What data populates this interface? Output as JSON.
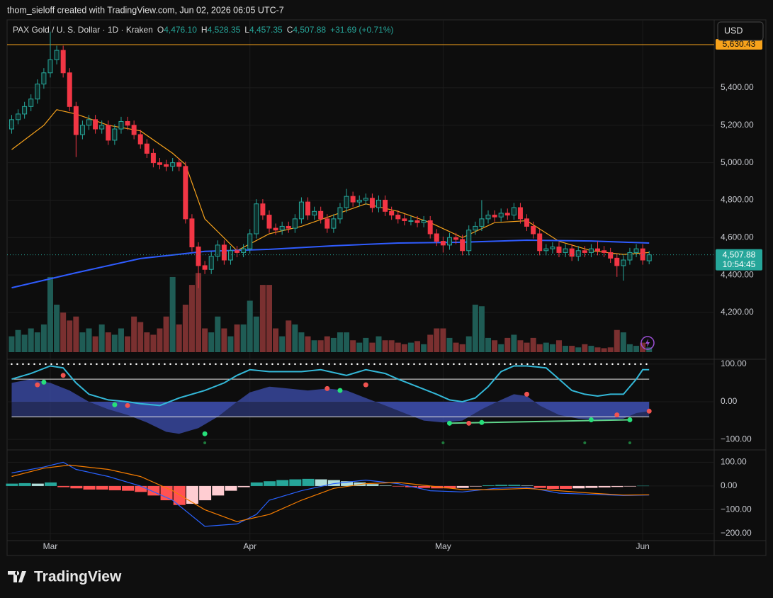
{
  "header": "thom_sieloff created with TradingView.com, Jun 02, 2026 06:05 UTC-7",
  "currency": "USD",
  "logo": "TradingView",
  "chart_data": [
    {
      "type": "candlestick",
      "title": "PAX Gold / U. S. Dollar · 1D · Kraken",
      "ohlc": [
        {
          "label": "O",
          "value": "4,476.10"
        },
        {
          "label": "H",
          "value": "4,528.35"
        },
        {
          "label": "L",
          "value": "4,457.35"
        },
        {
          "label": "C",
          "value": "4,507.88"
        }
      ],
      "change": "+31.69 (+0.71%)",
      "xlim": [
        -0.71,
        109.1
      ],
      "xticks": [
        {
          "value": 6,
          "label": "Mar"
        },
        {
          "value": 37,
          "label": "Apr"
        },
        {
          "value": 67,
          "label": "May"
        },
        {
          "value": 98,
          "label": "Jun"
        }
      ],
      "ylim": [
        3988,
        5763
      ],
      "yticks": [
        {
          "value": 4200,
          "label": "4,200.00"
        },
        {
          "value": 4400,
          "label": "4,400.00"
        },
        {
          "value": 4600,
          "label": "4,600.00"
        },
        {
          "value": 4800,
          "label": "4,800.00"
        },
        {
          "value": 5000,
          "label": "5,000.00"
        },
        {
          "value": 5200,
          "label": "5,200.00"
        },
        {
          "value": 5400,
          "label": "5,400.00"
        }
      ],
      "up_color": "#26a69a",
      "down_color": "#f23645",
      "open": [
        5180,
        5230,
        5260,
        5300,
        5340,
        5420,
        5480,
        5550,
        5600,
        5480,
        5300,
        5150,
        5200,
        5230,
        5180,
        5200,
        5120,
        5180,
        5220,
        5200,
        5150,
        5100,
        5050,
        5000,
        4990,
        4980,
        5000,
        4980,
        4700,
        4550,
        4450,
        4430,
        4500,
        4560,
        4480,
        4530,
        4520,
        4540,
        4620,
        4780,
        4720,
        4650,
        4640,
        4660,
        4650,
        4700,
        4790,
        4720,
        4740,
        4700,
        4650,
        4700,
        4760,
        4820,
        4790,
        4800,
        4810,
        4760,
        4800,
        4740,
        4720,
        4700,
        4690,
        4690,
        4680,
        4690,
        4620,
        4580,
        4560,
        4600,
        4590,
        4530,
        4640,
        4660,
        4700,
        4720,
        4710,
        4730,
        4720,
        4760,
        4700,
        4660,
        4620,
        4530,
        4540,
        4550,
        4520,
        4540,
        4500,
        4530,
        4520,
        4540,
        4530,
        4520,
        4490,
        4450,
        4480,
        4520,
        4540,
        4476.1
      ],
      "high": [
        5255,
        5285,
        5325,
        5365,
        5445,
        5505,
        5700,
        5625,
        5625,
        5505,
        5325,
        5225,
        5255,
        5255,
        5225,
        5225,
        5205,
        5245,
        5245,
        5225,
        5175,
        5125,
        5075,
        5025,
        5015,
        5025,
        5025,
        5005,
        4725,
        4575,
        4475,
        4525,
        4585,
        4585,
        4555,
        4555,
        4565,
        4645,
        4805,
        4805,
        4745,
        4675,
        4685,
        4685,
        4725,
        4815,
        4815,
        4765,
        4765,
        4725,
        4725,
        4785,
        4860,
        4845,
        4825,
        4835,
        4835,
        4825,
        4825,
        4765,
        4745,
        4725,
        4715,
        4715,
        4715,
        4715,
        4645,
        4605,
        4625,
        4625,
        4615,
        4665,
        4685,
        4800,
        4745,
        4745,
        4755,
        4755,
        4785,
        4785,
        4725,
        4685,
        4645,
        4565,
        4575,
        4575,
        4565,
        4565,
        4555,
        4555,
        4565,
        4580,
        4555,
        4545,
        4515,
        4505,
        4545,
        4565,
        4565,
        4528.35
      ],
      "low": [
        5155,
        5205,
        5235,
        5275,
        5315,
        5395,
        5455,
        5525,
        5455,
        5275,
        5030,
        5125,
        5175,
        5155,
        5155,
        5095,
        5095,
        5155,
        5175,
        5125,
        5075,
        5025,
        4975,
        4965,
        4955,
        4955,
        4955,
        4675,
        4525,
        4330,
        4405,
        4405,
        4475,
        4455,
        4455,
        4495,
        4495,
        4515,
        4595,
        4695,
        4625,
        4615,
        4615,
        4625,
        4625,
        4675,
        4695,
        4695,
        4675,
        4625,
        4625,
        4675,
        4735,
        4765,
        4765,
        4775,
        4735,
        4735,
        4715,
        4695,
        4675,
        4665,
        4665,
        4655,
        4655,
        4595,
        4555,
        4520,
        4535,
        4565,
        4505,
        4505,
        4615,
        4635,
        4675,
        4685,
        4685,
        4695,
        4695,
        4675,
        4635,
        4595,
        4505,
        4505,
        4515,
        4495,
        4495,
        4475,
        4475,
        4495,
        4495,
        4505,
        4495,
        4465,
        4390,
        4370,
        4455,
        4495,
        4455,
        4457.35
      ],
      "close": [
        5230,
        5260,
        5300,
        5340,
        5420,
        5480,
        5550,
        5600,
        5480,
        5300,
        5150,
        5200,
        5230,
        5180,
        5200,
        5120,
        5180,
        5220,
        5200,
        5150,
        5100,
        5050,
        5000,
        4990,
        4980,
        5000,
        4980,
        4700,
        4550,
        4450,
        4430,
        4500,
        4560,
        4480,
        4530,
        4520,
        4540,
        4620,
        4780,
        4720,
        4650,
        4640,
        4660,
        4650,
        4700,
        4790,
        4720,
        4740,
        4700,
        4650,
        4700,
        4760,
        4820,
        4790,
        4800,
        4810,
        4760,
        4800,
        4740,
        4720,
        4700,
        4690,
        4690,
        4680,
        4690,
        4620,
        4580,
        4560,
        4600,
        4590,
        4530,
        4640,
        4660,
        4700,
        4720,
        4710,
        4730,
        4720,
        4760,
        4700,
        4660,
        4620,
        4530,
        4540,
        4550,
        4520,
        4540,
        4500,
        4530,
        4520,
        4540,
        4530,
        4520,
        4490,
        4450,
        4480,
        4520,
        4540,
        4480,
        4507.88
      ],
      "volume_lim": [
        0,
        420
      ],
      "volume": [
        20,
        28,
        22,
        30,
        25,
        35,
        95,
        60,
        50,
        40,
        45,
        25,
        30,
        20,
        35,
        25,
        22,
        30,
        20,
        45,
        38,
        25,
        22,
        30,
        45,
        95,
        35,
        60,
        85,
        100,
        30,
        25,
        45,
        30,
        20,
        35,
        35,
        65,
        45,
        85,
        85,
        30,
        20,
        40,
        35,
        25,
        20,
        15,
        15,
        20,
        18,
        25,
        25,
        15,
        12,
        18,
        12,
        20,
        15,
        15,
        12,
        10,
        12,
        14,
        10,
        22,
        30,
        30,
        18,
        12,
        10,
        20,
        60,
        58,
        18,
        15,
        10,
        18,
        22,
        15,
        12,
        18,
        10,
        12,
        10,
        15,
        8,
        8,
        6,
        10,
        8,
        6,
        5,
        6,
        28,
        25,
        10,
        8,
        12,
        6
      ],
      "volume_up_color": "#1f5c55",
      "volume_down_color": "#7a3030",
      "moving_averages": [
        {
          "color": "#f7a21b",
          "x": [
            0,
            5,
            7,
            10,
            15,
            20,
            25,
            27,
            30,
            35,
            40,
            45,
            50,
            55,
            60,
            65,
            70,
            75,
            80,
            85,
            90,
            95,
            99
          ],
          "values": [
            5070,
            5200,
            5283,
            5260,
            5200,
            5170,
            5050,
            4990,
            4700,
            4530,
            4620,
            4660,
            4720,
            4780,
            4740,
            4680,
            4600,
            4680,
            4690,
            4580,
            4530,
            4510,
            4520
          ]
        },
        {
          "color": "#2f5cff",
          "x": [
            0,
            10,
            20,
            30,
            40,
            50,
            60,
            70,
            80,
            90,
            99
          ],
          "values": [
            4332,
            4412,
            4488,
            4526,
            4537,
            4556,
            4571,
            4575,
            4586,
            4582,
            4571
          ]
        }
      ],
      "price_line": {
        "value": 5630.43,
        "label": "5,630.43",
        "color": "#f7a21b"
      },
      "last_price": {
        "value": 4507.88,
        "label": "4,507.88",
        "countdown": "10:54:45",
        "color": "#26a69a"
      }
    },
    {
      "type": "oscillator",
      "ylim": [
        -126,
        111
      ],
      "yticks": [
        {
          "value": 100,
          "label": "100.00"
        },
        {
          "value": 0,
          "label": "0.00"
        },
        {
          "value": -100,
          "label": "−100.00"
        }
      ],
      "levels": [
        60,
        -40
      ],
      "dotted_level": 100,
      "line": {
        "color": "#33b8d8",
        "x": [
          0,
          3,
          6,
          8,
          10,
          12,
          15,
          18,
          20,
          23,
          26,
          30,
          33,
          35,
          37,
          40,
          45,
          48,
          52,
          55,
          58,
          60,
          63,
          66,
          68,
          70,
          72,
          74,
          76,
          78,
          80,
          83,
          85,
          87,
          89,
          91,
          93,
          95,
          97,
          98,
          99
        ],
        "values": [
          60,
          75,
          95,
          90,
          50,
          20,
          5,
          0,
          -5,
          -10,
          10,
          30,
          50,
          70,
          85,
          80,
          80,
          85,
          70,
          85,
          75,
          60,
          40,
          20,
          5,
          0,
          10,
          40,
          80,
          95,
          95,
          90,
          60,
          30,
          20,
          15,
          20,
          20,
          60,
          85,
          85
        ]
      },
      "wave": {
        "color": "#3d4fb0",
        "x": [
          0,
          3,
          6,
          9,
          12,
          15,
          18,
          21,
          24,
          26,
          29,
          32,
          35,
          37,
          40,
          43,
          46,
          49,
          52,
          55,
          58,
          61,
          64,
          67,
          70,
          73,
          76,
          78,
          80,
          82,
          85,
          88,
          92,
          95,
          97,
          99
        ],
        "values": [
          50,
          60,
          50,
          30,
          0,
          -20,
          -35,
          -55,
          -80,
          -85,
          -70,
          -40,
          0,
          25,
          40,
          35,
          30,
          35,
          30,
          10,
          -10,
          -30,
          -50,
          -55,
          -50,
          -20,
          5,
          20,
          15,
          -10,
          -35,
          -45,
          -50,
          -45,
          -30,
          -25
        ]
      },
      "divergence": {
        "color": "#5fd38a",
        "x": [
          68,
          96
        ],
        "values": [
          -57,
          -48
        ]
      },
      "signals": [
        {
          "color": "#f05350",
          "x": [
            4,
            8,
            18,
            49,
            55,
            71,
            80,
            94,
            99
          ],
          "values": [
            45,
            70,
            -10,
            35,
            45,
            -57,
            20,
            -35,
            -25
          ]
        },
        {
          "color": "#26e07a",
          "x": [
            5,
            16,
            30,
            51,
            68,
            73,
            90,
            96
          ],
          "values": [
            52,
            -8,
            -85,
            30,
            -57,
            -55,
            -48,
            -48
          ]
        },
        {
          "color": "#1e7a3c",
          "x": [
            30,
            67,
            89,
            96
          ],
          "values": [
            -109,
            -109,
            -109,
            -109
          ]
        }
      ]
    },
    {
      "type": "macd",
      "ylim": [
        -230,
        149
      ],
      "yticks": [
        {
          "value": 100,
          "label": "100.00"
        },
        {
          "value": 0,
          "label": "0.00"
        },
        {
          "value": -100,
          "label": "−100.00"
        },
        {
          "value": -200,
          "label": "−200.00"
        }
      ],
      "histogram": {
        "x": [
          0,
          2,
          4,
          6,
          8,
          10,
          12,
          14,
          16,
          18,
          20,
          22,
          24,
          26,
          28,
          30,
          32,
          34,
          36,
          38,
          40,
          42,
          44,
          46,
          48,
          50,
          52,
          54,
          56,
          58,
          60,
          62,
          64,
          66,
          68,
          70,
          72,
          74,
          76,
          78,
          80,
          82,
          84,
          86,
          88,
          90,
          92,
          94,
          96,
          98
        ],
        "values": [
          10,
          12,
          10,
          15,
          -5,
          -10,
          -15,
          -15,
          -18,
          -20,
          -25,
          -40,
          -60,
          -80,
          -75,
          -60,
          -40,
          -20,
          -5,
          15,
          20,
          25,
          28,
          30,
          28,
          25,
          20,
          15,
          8,
          2,
          -2,
          -5,
          -8,
          -10,
          -10,
          -8,
          -2,
          3,
          5,
          5,
          2,
          -8,
          -12,
          -12,
          -10,
          -8,
          -6,
          -4,
          -2,
          1
        ],
        "colors": [
          "#26a69a",
          "#b2dfdb",
          "#ffcdd2",
          "#ff5252"
        ]
      },
      "series": [
        {
          "color": "#2962ff",
          "x": [
            0,
            5,
            8,
            10,
            15,
            20,
            25,
            30,
            35,
            38,
            40,
            45,
            50,
            55,
            60,
            65,
            70,
            75,
            80,
            85,
            90,
            95,
            99
          ],
          "values": [
            55,
            80,
            100,
            70,
            40,
            0,
            -60,
            -170,
            -160,
            -120,
            -60,
            -20,
            10,
            25,
            10,
            -20,
            -25,
            -10,
            -5,
            -30,
            -35,
            -40,
            -38
          ]
        },
        {
          "color": "#f57c00",
          "x": [
            0,
            5,
            9,
            15,
            20,
            25,
            30,
            35,
            40,
            45,
            50,
            55,
            60,
            65,
            70,
            75,
            80,
            85,
            90,
            95,
            99
          ],
          "values": [
            40,
            75,
            88,
            70,
            40,
            -20,
            -100,
            -150,
            -120,
            -60,
            -10,
            10,
            15,
            0,
            -15,
            -15,
            -10,
            -20,
            -30,
            -38,
            -37
          ]
        }
      ]
    }
  ]
}
